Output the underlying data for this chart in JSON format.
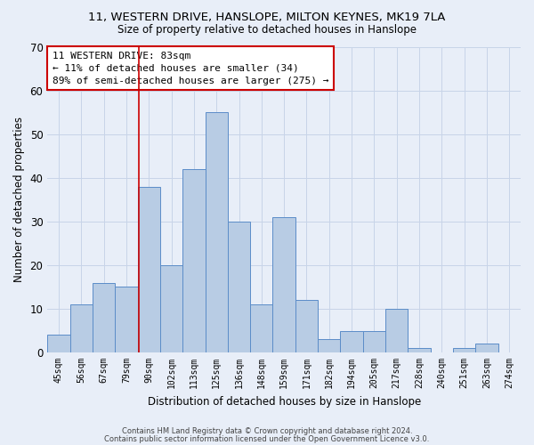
{
  "title1": "11, WESTERN DRIVE, HANSLOPE, MILTON KEYNES, MK19 7LA",
  "title2": "Size of property relative to detached houses in Hanslope",
  "xlabel": "Distribution of detached houses by size in Hanslope",
  "ylabel": "Number of detached properties",
  "categories": [
    "45sqm",
    "56sqm",
    "67sqm",
    "79sqm",
    "90sqm",
    "102sqm",
    "113sqm",
    "125sqm",
    "136sqm",
    "148sqm",
    "159sqm",
    "171sqm",
    "182sqm",
    "194sqm",
    "205sqm",
    "217sqm",
    "228sqm",
    "240sqm",
    "251sqm",
    "263sqm",
    "274sqm"
  ],
  "values": [
    4,
    11,
    16,
    15,
    38,
    20,
    42,
    55,
    30,
    11,
    31,
    12,
    3,
    5,
    5,
    10,
    1,
    0,
    1,
    2,
    0
  ],
  "bar_color": "#b8cce4",
  "bar_edge_color": "#5b8cc8",
  "grid_color": "#c8d4e8",
  "background_color": "#e8eef8",
  "red_line_x": 3.55,
  "annotation_text": "11 WESTERN DRIVE: 83sqm\n← 11% of detached houses are smaller (34)\n89% of semi-detached houses are larger (275) →",
  "annotation_box_color": "white",
  "annotation_box_edge_color": "#cc0000",
  "footer1": "Contains HM Land Registry data © Crown copyright and database right 2024.",
  "footer2": "Contains public sector information licensed under the Open Government Licence v3.0.",
  "ylim": [
    0,
    70
  ],
  "yticks": [
    0,
    10,
    20,
    30,
    40,
    50,
    60,
    70
  ]
}
